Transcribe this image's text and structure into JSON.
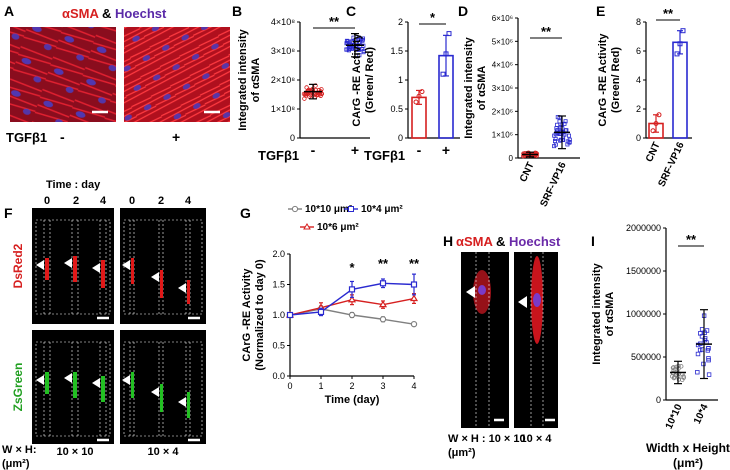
{
  "panel_letters": [
    "A",
    "B",
    "C",
    "D",
    "E",
    "F",
    "G",
    "H",
    "I"
  ],
  "colors": {
    "red": "#d62020",
    "blue": "#2a2ad0",
    "grey": "#808080",
    "purple": "#6a2aa8",
    "green": "#22b022"
  },
  "panel_a": {
    "stain_label_1": "αSMA",
    "stain_join": " & ",
    "stain_label_2": "Hoechst",
    "treatment_label": "TGFβ1",
    "minus": "-",
    "plus": "+"
  },
  "panel_f": {
    "time_label": "Time : day",
    "days": [
      "0",
      "2",
      "4",
      "0",
      "2",
      "4"
    ],
    "dsred_label": "DsRed2",
    "zsgreen_label": "ZsGreen",
    "wh_label": "W × H:",
    "unit_label": "(μm²)",
    "cond_1": "10 × 10",
    "cond_2": "10 × 4"
  },
  "panel_h": {
    "stain_label_1": "αSMA",
    "stain_join": " & ",
    "stain_label_2": "Hoechst",
    "wh_label": "W × H : 10 × 10",
    "cond_2": "10 × 4",
    "unit_label": "(μm²)"
  },
  "chart_data": [
    {
      "panel": "B",
      "type": "scatter",
      "ylabel_1": "Integrated intensity",
      "ylabel_2": "of αSMA",
      "xlabel": "TGFβ1",
      "categories": [
        "-",
        "+"
      ],
      "ylim": [
        0,
        400000000
      ],
      "yticks": [
        "0",
        "1×10⁸",
        "2×10⁸",
        "3×10⁸",
        "4×10⁸"
      ],
      "means": [
        160000000,
        320000000
      ],
      "sd": [
        25000000,
        40000000
      ],
      "significance": "**"
    },
    {
      "panel": "C",
      "type": "bar",
      "ylabel_1": "CArG -RE Activity",
      "ylabel_2": "(Green/ Red)",
      "xlabel": "TGFβ1",
      "categories": [
        "-",
        "+"
      ],
      "ylim": [
        0,
        2
      ],
      "yticks": [
        "0",
        "0.5",
        "1",
        "1.5",
        "2"
      ],
      "values": [
        0.7,
        1.42
      ],
      "error": [
        0.12,
        0.35
      ],
      "points": [
        [
          0.62,
          0.72,
          0.8
        ],
        [
          1.1,
          1.45,
          1.8
        ]
      ],
      "significance": "*"
    },
    {
      "panel": "D",
      "type": "scatter",
      "ylabel_1": "Integrated intensity",
      "ylabel_2": "of αSMA",
      "categories": [
        "CNT",
        "SRF-VP16"
      ],
      "ylim": [
        0,
        6000000
      ],
      "yticks": [
        "0",
        "1×10⁶",
        "2×10⁶",
        "3×10⁶",
        "4×10⁶",
        "5×10⁶",
        "6×10⁶"
      ],
      "means": [
        150000,
        1100000
      ],
      "sd": [
        100000,
        700000
      ],
      "significance": "**"
    },
    {
      "panel": "E",
      "type": "bar",
      "ylabel_1": "CArG -RE Activity",
      "ylabel_2": "(Green/ Red)",
      "categories": [
        "CNT",
        "SRF-VP16"
      ],
      "ylim": [
        0,
        8
      ],
      "yticks": [
        "0",
        "2",
        "4",
        "6",
        "8"
      ],
      "values": [
        1.0,
        6.6
      ],
      "error": [
        0.6,
        0.8
      ],
      "points": [
        [
          0.5,
          1.0,
          1.6
        ],
        [
          5.8,
          6.5,
          7.4
        ]
      ],
      "significance": "**"
    },
    {
      "panel": "G",
      "type": "line",
      "ylabel_1": "CArG -RE Activity",
      "ylabel_2": "(Normalized to day 0)",
      "xlabel": "Time (day)",
      "x": [
        0,
        1,
        2,
        3,
        4
      ],
      "xticks": [
        "0",
        "1",
        "2",
        "3",
        "4"
      ],
      "ylim": [
        0,
        2
      ],
      "yticks": [
        "0.0",
        "0.5",
        "1.0",
        "1.5",
        "2.0"
      ],
      "series": [
        {
          "name": "10*10 μm²",
          "color": "#808080",
          "marker": "circle",
          "values": [
            1.0,
            1.1,
            1.0,
            0.93,
            0.85
          ],
          "error": [
            0.02,
            0.05,
            0.04,
            0.04,
            0.03
          ]
        },
        {
          "name": "10*6 μm²",
          "color": "#d62020",
          "marker": "triangle",
          "values": [
            1.0,
            1.12,
            1.25,
            1.17,
            1.27
          ],
          "error": [
            0.02,
            0.08,
            0.08,
            0.06,
            0.08
          ]
        },
        {
          "name": "10*4 μm²",
          "color": "#2a2ad0",
          "marker": "square",
          "values": [
            1.0,
            1.05,
            1.42,
            1.52,
            1.5
          ],
          "error": [
            0.02,
            0.06,
            0.13,
            0.07,
            0.17
          ]
        }
      ],
      "annotations": [
        {
          "x": 2,
          "text": "*"
        },
        {
          "x": 3,
          "text": "**"
        },
        {
          "x": 4,
          "text": "**"
        }
      ]
    },
    {
      "panel": "I",
      "type": "scatter",
      "ylabel_1": "Integrated intensity",
      "ylabel_2": "of αSMA",
      "xlabel_1": "Width x Height",
      "xlabel_2": "(μm²)",
      "categories": [
        "10*10",
        "10*4"
      ],
      "ylim": [
        0,
        2000000
      ],
      "yticks": [
        "0",
        "500000",
        "1000000",
        "1500000",
        "2000000"
      ],
      "means": [
        320000,
        650000
      ],
      "sd": [
        130000,
        400000
      ],
      "significance": "**"
    }
  ]
}
